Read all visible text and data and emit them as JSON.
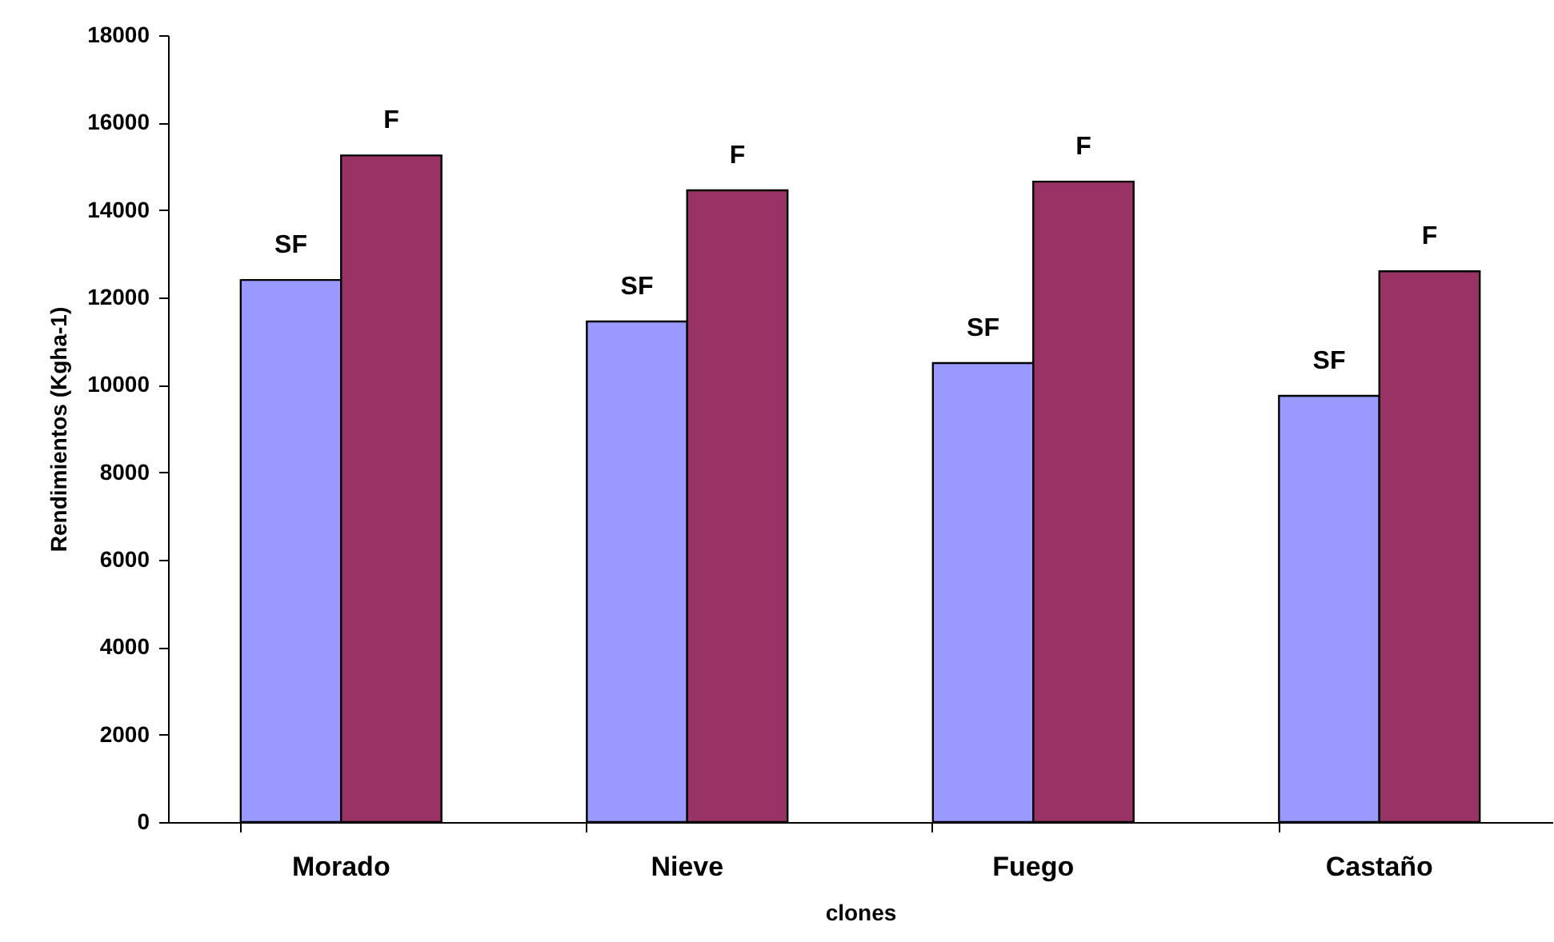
{
  "chart_data": {
    "type": "bar",
    "xlabel": "clones",
    "ylabel": "Rendimientos (Kgha-1)",
    "categories": [
      "Morado",
      "Nieve",
      "Fuego",
      "Castaño"
    ],
    "series": [
      {
        "name": "SF",
        "color": "#9999ff",
        "values": [
          12400,
          11450,
          10500,
          9750
        ]
      },
      {
        "name": "F",
        "color": "#993366",
        "values": [
          15250,
          14450,
          14650,
          12600
        ]
      }
    ],
    "ylim": [
      0,
      18000
    ],
    "yticks": [
      0,
      2000,
      4000,
      6000,
      8000,
      10000,
      12000,
      14000,
      16000,
      18000
    ],
    "grid": false
  }
}
